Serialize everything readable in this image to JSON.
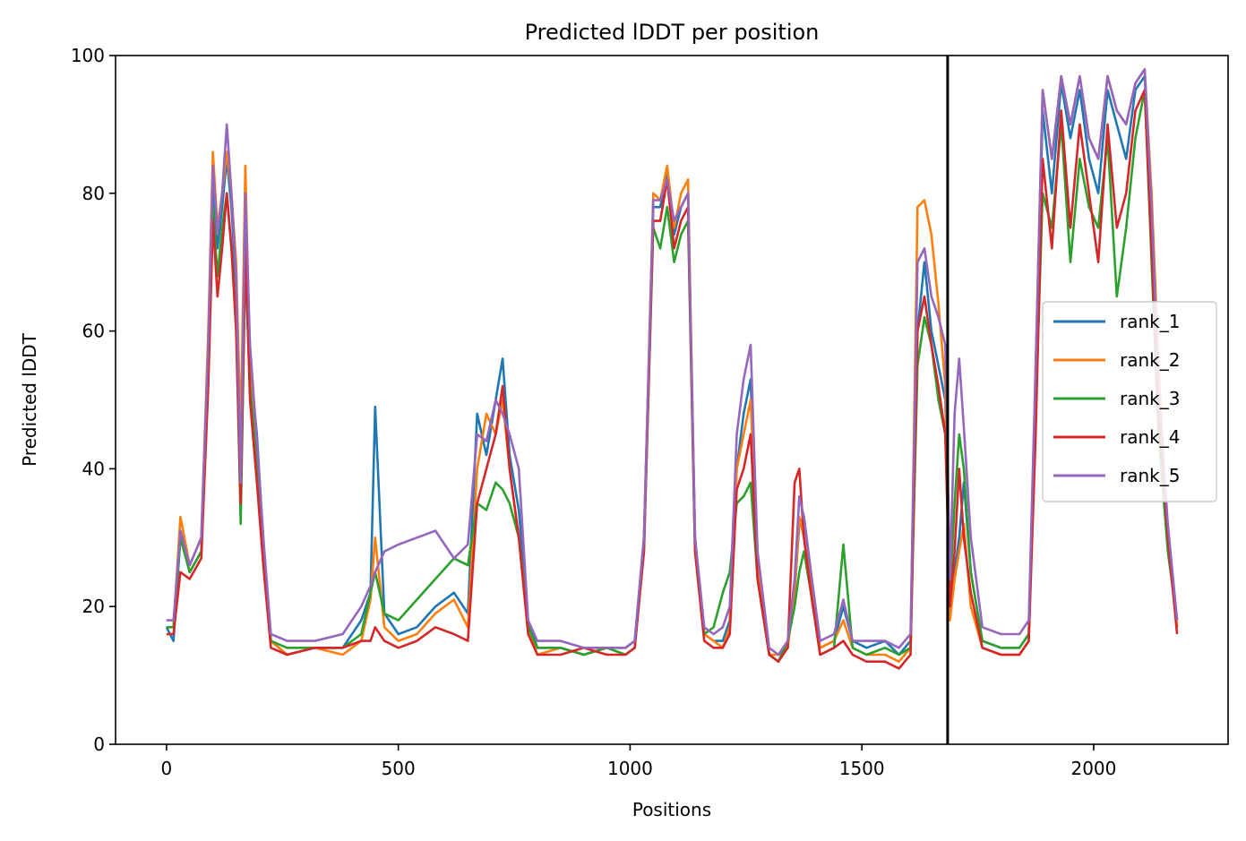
{
  "chart_data": {
    "type": "line",
    "title": "Predicted lDDT per position",
    "xlabel": "Positions",
    "ylabel": "Predicted lDDT",
    "xlim": [
      -110,
      2290
    ],
    "ylim": [
      0,
      100
    ],
    "xticks": [
      0,
      500,
      1000,
      1500,
      2000
    ],
    "yticks": [
      0,
      20,
      40,
      60,
      80,
      100
    ],
    "grid": false,
    "legend_position": "center-right",
    "vertical_line_x": 1685,
    "x": [
      0,
      15,
      30,
      50,
      75,
      90,
      100,
      110,
      120,
      130,
      140,
      150,
      160,
      170,
      180,
      195,
      210,
      225,
      260,
      320,
      380,
      420,
      440,
      450,
      470,
      500,
      540,
      580,
      620,
      650,
      670,
      690,
      710,
      725,
      740,
      760,
      780,
      800,
      850,
      900,
      950,
      990,
      1010,
      1030,
      1050,
      1065,
      1080,
      1095,
      1110,
      1125,
      1140,
      1160,
      1180,
      1200,
      1215,
      1230,
      1245,
      1260,
      1275,
      1300,
      1320,
      1340,
      1355,
      1365,
      1375,
      1390,
      1410,
      1440,
      1460,
      1480,
      1510,
      1550,
      1580,
      1605,
      1620,
      1635,
      1650,
      1665,
      1680,
      1690,
      1700,
      1710,
      1720,
      1735,
      1760,
      1800,
      1840,
      1860,
      1875,
      1890,
      1910,
      1930,
      1950,
      1970,
      1990,
      2010,
      2030,
      2050,
      2070,
      2090,
      2110,
      2125,
      2140,
      2160,
      2180
    ],
    "series": [
      {
        "name": "rank_1",
        "color": "#1f77b4",
        "values": [
          17,
          15,
          30,
          25,
          28,
          56,
          82,
          72,
          78,
          85,
          78,
          66,
          40,
          75,
          55,
          45,
          28,
          15,
          13,
          14,
          14,
          18,
          22,
          49,
          19,
          16,
          17,
          20,
          22,
          19,
          48,
          42,
          50,
          56,
          42,
          34,
          18,
          14,
          14,
          13,
          14,
          14,
          15,
          30,
          78,
          78,
          83,
          74,
          78,
          80,
          30,
          16,
          15,
          15,
          18,
          40,
          48,
          53,
          26,
          13,
          12,
          15,
          22,
          32,
          33,
          25,
          14,
          15,
          20,
          15,
          14,
          15,
          13,
          15,
          60,
          70,
          60,
          55,
          50,
          22,
          25,
          30,
          38,
          25,
          15,
          14,
          14,
          16,
          50,
          92,
          80,
          96,
          88,
          95,
          85,
          80,
          95,
          90,
          85,
          95,
          97,
          75,
          50,
          30,
          18
        ]
      },
      {
        "name": "rank_2",
        "color": "#ff7f0e",
        "values": [
          17,
          17,
          33,
          26,
          30,
          60,
          86,
          75,
          80,
          86,
          80,
          70,
          45,
          84,
          55,
          42,
          28,
          15,
          13,
          14,
          13,
          15,
          21,
          30,
          17,
          15,
          16,
          19,
          21,
          17,
          40,
          48,
          45,
          50,
          40,
          30,
          17,
          13,
          14,
          13,
          14,
          13,
          14,
          30,
          80,
          79,
          84,
          75,
          80,
          82,
          30,
          16,
          15,
          14,
          17,
          40,
          45,
          50,
          26,
          13,
          13,
          14,
          22,
          33,
          30,
          23,
          14,
          15,
          18,
          14,
          13,
          13,
          12,
          14,
          78,
          79,
          74,
          64,
          52,
          18,
          24,
          28,
          32,
          20,
          14,
          13,
          13,
          15,
          55,
          95,
          85,
          97,
          90,
          97,
          88,
          85,
          97,
          92,
          90,
          96,
          98,
          80,
          55,
          30,
          17
        ]
      },
      {
        "name": "rank_3",
        "color": "#2ca02c",
        "values": [
          17,
          17,
          30,
          25,
          28,
          55,
          78,
          68,
          75,
          80,
          72,
          62,
          32,
          70,
          52,
          40,
          28,
          15,
          14,
          14,
          14,
          16,
          22,
          25,
          19,
          18,
          21,
          24,
          27,
          26,
          35,
          34,
          38,
          37,
          35,
          30,
          17,
          14,
          14,
          13,
          14,
          13,
          14,
          28,
          75,
          72,
          78,
          70,
          74,
          76,
          28,
          16,
          17,
          22,
          25,
          35,
          36,
          38,
          24,
          13,
          12,
          15,
          20,
          25,
          28,
          22,
          13,
          14,
          29,
          14,
          13,
          14,
          13,
          14,
          55,
          62,
          58,
          50,
          45,
          22,
          35,
          45,
          40,
          25,
          15,
          14,
          14,
          16,
          48,
          80,
          75,
          90,
          70,
          85,
          78,
          75,
          88,
          65,
          75,
          88,
          95,
          70,
          45,
          28,
          18
        ]
      },
      {
        "name": "rank_4",
        "color": "#d62728",
        "values": [
          16,
          16,
          25,
          24,
          27,
          52,
          76,
          65,
          72,
          80,
          72,
          60,
          35,
          72,
          50,
          38,
          25,
          14,
          13,
          14,
          14,
          15,
          15,
          17,
          15,
          14,
          15,
          17,
          16,
          15,
          35,
          40,
          45,
          52,
          40,
          30,
          16,
          13,
          13,
          14,
          13,
          13,
          14,
          28,
          76,
          76,
          82,
          72,
          76,
          78,
          28,
          15,
          14,
          14,
          16,
          37,
          40,
          45,
          24,
          13,
          12,
          14,
          38,
          40,
          30,
          22,
          13,
          14,
          15,
          13,
          12,
          12,
          11,
          13,
          60,
          65,
          58,
          52,
          45,
          20,
          28,
          40,
          30,
          22,
          14,
          13,
          13,
          15,
          45,
          85,
          72,
          92,
          75,
          90,
          80,
          70,
          90,
          75,
          80,
          92,
          95,
          72,
          48,
          30,
          16
        ]
      },
      {
        "name": "rank_5",
        "color": "#9467bd",
        "values": [
          18,
          18,
          31,
          26,
          30,
          58,
          84,
          74,
          80,
          90,
          80,
          68,
          38,
          80,
          58,
          44,
          29,
          16,
          15,
          15,
          16,
          20,
          23,
          25,
          28,
          29,
          30,
          31,
          27,
          29,
          45,
          44,
          50,
          48,
          45,
          40,
          18,
          15,
          15,
          14,
          14,
          14,
          15,
          30,
          79,
          79,
          82,
          76,
          78,
          80,
          30,
          17,
          16,
          17,
          20,
          45,
          53,
          58,
          28,
          14,
          13,
          15,
          24,
          36,
          33,
          25,
          15,
          16,
          21,
          15,
          15,
          15,
          14,
          16,
          70,
          72,
          65,
          62,
          58,
          24,
          48,
          56,
          46,
          30,
          17,
          16,
          16,
          18,
          55,
          95,
          85,
          97,
          90,
          97,
          88,
          85,
          97,
          92,
          90,
          96,
          98,
          78,
          52,
          32,
          18
        ]
      }
    ]
  }
}
